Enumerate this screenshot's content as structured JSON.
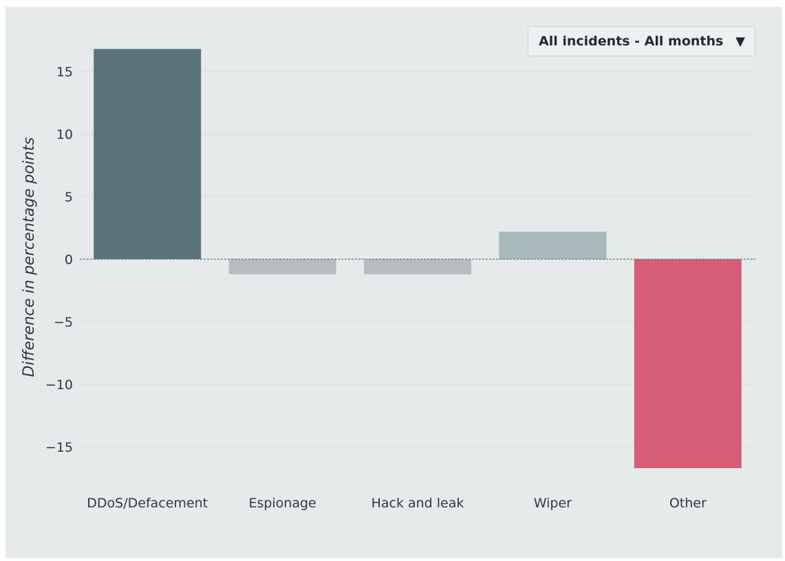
{
  "dropdown": {
    "selected": "All incidents - All months",
    "arrow_icon": "triangle-down-icon"
  },
  "chart_data": {
    "type": "bar",
    "categories": [
      "DDoS/Defacement",
      "Espionage",
      "Hack and leak",
      "Wiper",
      "Other"
    ],
    "values": [
      16.8,
      -1.2,
      -1.2,
      2.2,
      -16.7
    ],
    "bar_colors": [
      "#5b747b",
      "#b8bcc1",
      "#b8bcc1",
      "#a9b9bc",
      "#d75c76"
    ],
    "title": "",
    "xlabel": "",
    "ylabel": "Difference in percentage points",
    "ylim": [
      -18,
      18
    ],
    "yticks": [
      15,
      10,
      5,
      0,
      -5,
      -10,
      -15
    ],
    "ytick_labels": [
      "15",
      "10",
      "5",
      "0",
      "−5",
      "−10",
      "−15"
    ],
    "grid": true,
    "zero_line": "dashed",
    "legend": "none"
  },
  "colors": {
    "background": "#e7eaeb",
    "grid": "#d7dcde",
    "text": "#2b3a42"
  }
}
